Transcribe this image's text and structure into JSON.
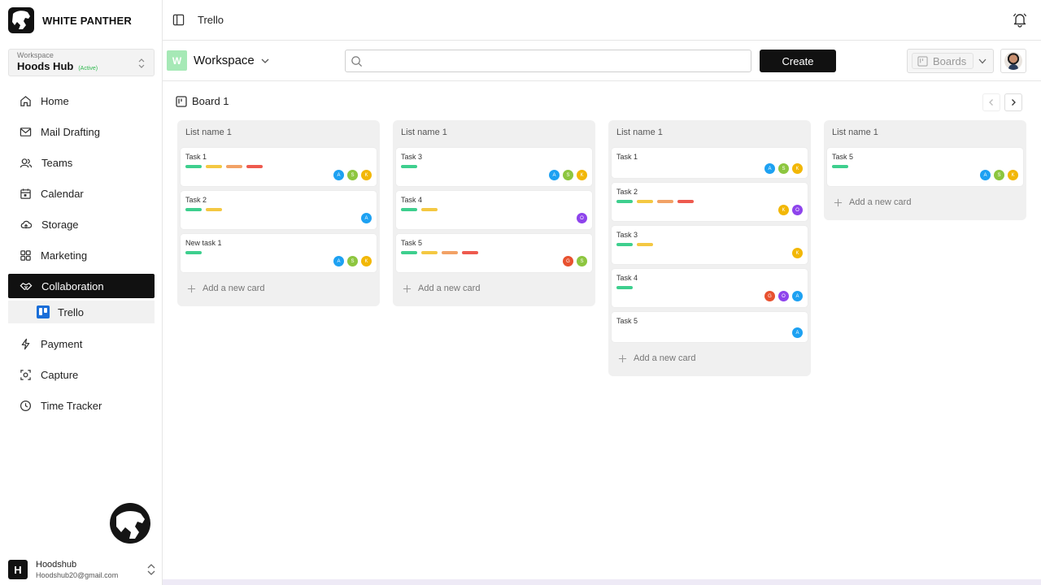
{
  "brand": {
    "name": "WHITE PANTHER"
  },
  "workspace_select": {
    "caption": "Workspace",
    "name": "Hoods Hub",
    "status": "(Active)"
  },
  "sidebar": {
    "items": [
      {
        "label": "Home",
        "icon": "home-icon"
      },
      {
        "label": "Mail Drafting",
        "icon": "mail-icon"
      },
      {
        "label": "Teams",
        "icon": "users-icon"
      },
      {
        "label": "Calendar",
        "icon": "calendar-icon"
      },
      {
        "label": "Storage",
        "icon": "cloud-icon"
      },
      {
        "label": "Marketing",
        "icon": "grid-icon"
      },
      {
        "label": "Collaboration",
        "icon": "handshake-icon",
        "active": true
      },
      {
        "label": "Payment",
        "icon": "bolt-icon"
      },
      {
        "label": "Capture",
        "icon": "capture-icon"
      },
      {
        "label": "Time Tracker",
        "icon": "clock-icon"
      }
    ],
    "subitem": {
      "label": "Trello",
      "icon": "trello-icon"
    }
  },
  "user": {
    "initial": "H",
    "name": "Hoodshub",
    "email": "Hoodshub20@gmail.com"
  },
  "topbar": {
    "title": "Trello"
  },
  "toolbar": {
    "workspace_letter": "W",
    "workspace_label": "Workspace",
    "search_value": "",
    "search_placeholder": "",
    "create_label": "Create",
    "boards_label": "Boards"
  },
  "board": {
    "title": "Board 1",
    "lists": [
      {
        "title": "List name 1",
        "add_label": "Add a new card",
        "cards": [
          {
            "title": "Task 1",
            "labels": [
              "green",
              "yellow",
              "orange",
              "red"
            ],
            "avatars": [
              [
                "A",
                "blue"
              ],
              [
                "S",
                "lime"
              ],
              [
                "K",
                "yellow"
              ]
            ]
          },
          {
            "title": "Task 2",
            "labels": [
              "green",
              "yellow"
            ],
            "avatars": [
              [
                "A",
                "blue"
              ]
            ]
          },
          {
            "title": "New task 1",
            "labels": [
              "green"
            ],
            "avatars": [
              [
                "A",
                "blue"
              ],
              [
                "S",
                "lime"
              ],
              [
                "K",
                "yellow"
              ]
            ]
          }
        ]
      },
      {
        "title": "List name 1",
        "add_label": "Add a new card",
        "cards": [
          {
            "title": "Task 3",
            "labels": [
              "green"
            ],
            "avatars": [
              [
                "A",
                "blue"
              ],
              [
                "S",
                "lime"
              ],
              [
                "K",
                "yellow"
              ]
            ]
          },
          {
            "title": "Task 4",
            "labels": [
              "green",
              "yellow"
            ],
            "avatars": [
              [
                "O",
                "purple"
              ]
            ]
          },
          {
            "title": "Task 5",
            "labels": [
              "green",
              "yellow",
              "orange",
              "red"
            ],
            "avatars": [
              [
                "G",
                "red"
              ],
              [
                "S",
                "lime"
              ]
            ]
          }
        ]
      },
      {
        "title": "List name 1",
        "add_label": "Add a new card",
        "cards": [
          {
            "title": "Task 1",
            "labels": [],
            "avatars": [
              [
                "A",
                "blue"
              ],
              [
                "S",
                "lime"
              ],
              [
                "K",
                "yellow"
              ]
            ],
            "compact": true
          },
          {
            "title": "Task 2",
            "labels": [
              "green",
              "yellow",
              "orange",
              "red"
            ],
            "avatars": [
              [
                "K",
                "yellow"
              ],
              [
                "O",
                "purple"
              ]
            ]
          },
          {
            "title": "Task 3",
            "labels": [
              "green",
              "yellow"
            ],
            "avatars": [
              [
                "K",
                "yellow"
              ]
            ]
          },
          {
            "title": "Task 4",
            "labels": [
              "green"
            ],
            "avatars": [
              [
                "G",
                "red"
              ],
              [
                "O",
                "purple"
              ],
              [
                "A",
                "blue"
              ]
            ]
          },
          {
            "title": "Task 5",
            "labels": [],
            "avatars": [
              [
                "A",
                "blue"
              ]
            ],
            "compact": true
          }
        ]
      },
      {
        "title": "List name 1",
        "add_label": "Add a new card",
        "cards": [
          {
            "title": "Task 5",
            "labels": [
              "green"
            ],
            "avatars": [
              [
                "A",
                "blue"
              ],
              [
                "S",
                "lime"
              ],
              [
                "K",
                "yellow"
              ]
            ]
          }
        ]
      }
    ]
  },
  "colors": {
    "green": "#3ecf8e",
    "yellow": "#f4c842",
    "orange": "#f2a266",
    "red": "#ee5a4e",
    "blue": "#1da1f2",
    "lime": "#8dc63f",
    "purple": "#8e44ec",
    "avatar_yellow": "#f2b705",
    "avatar_red": "#e8512f"
  }
}
